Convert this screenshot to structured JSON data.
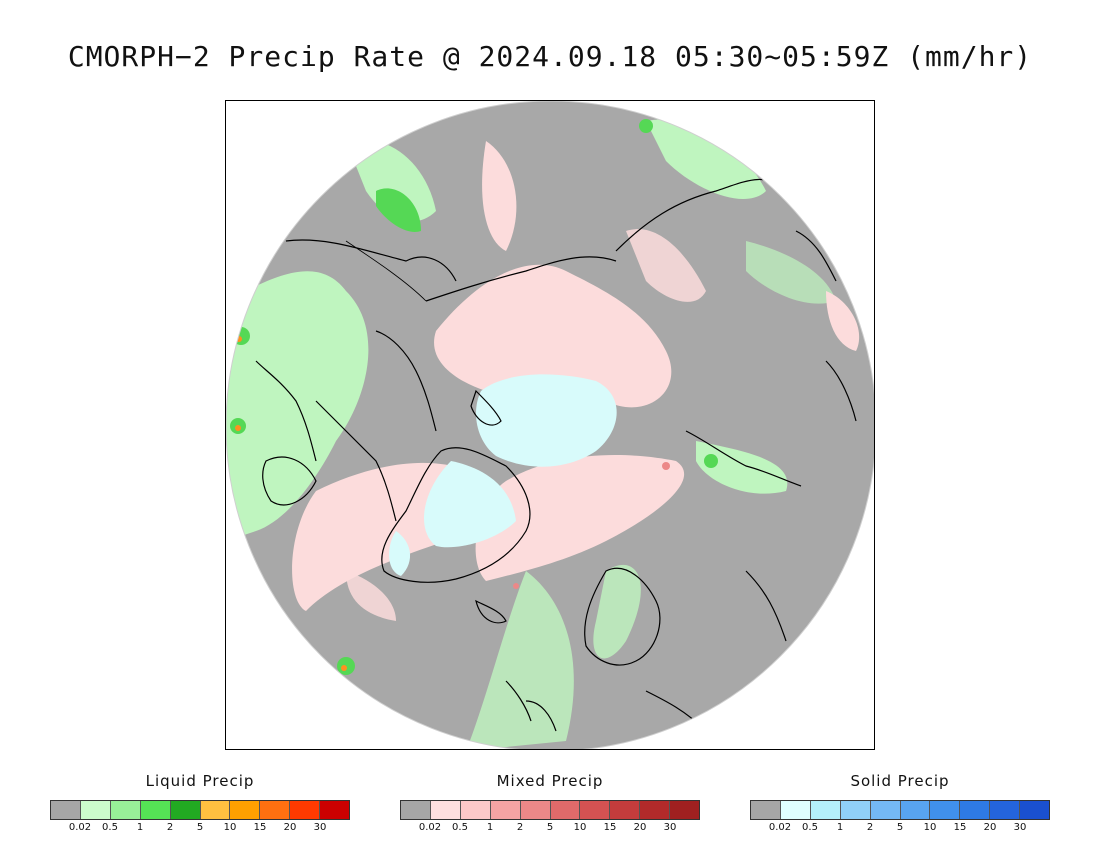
{
  "title": "CMORPH−2 Precip Rate @ 2024.09.18 05:30~05:59Z (mm/hr)",
  "map": {
    "projection": "north-polar-stereographic",
    "background_color": "#a8a8a8",
    "features": [
      "coastlines",
      "precip-shading"
    ]
  },
  "legends": [
    {
      "name": "liquid",
      "title": "Liquid Precip",
      "colors": [
        "#a6a6a6",
        "#ccfccc",
        "#98f098",
        "#55e255",
        "#22aa22",
        "#ffc040",
        "#ffa000",
        "#ff7010",
        "#ff3a00",
        "#cc0000"
      ],
      "ticks": [
        "0.02",
        "0.5",
        "1",
        "2",
        "5",
        "10",
        "15",
        "20",
        "30"
      ]
    },
    {
      "name": "mixed",
      "title": "Mixed Precip",
      "colors": [
        "#a6a6a6",
        "#fee0e0",
        "#fcc8c8",
        "#f4a4a4",
        "#ec8888",
        "#e06a6a",
        "#d45252",
        "#c43c3c",
        "#b22a2a",
        "#a02020"
      ],
      "ticks": [
        "0.02",
        "0.5",
        "1",
        "2",
        "5",
        "10",
        "15",
        "20",
        "30"
      ]
    },
    {
      "name": "solid",
      "title": "Solid Precip",
      "colors": [
        "#a6a6a6",
        "#e0ffff",
        "#b4f0fa",
        "#90d0f8",
        "#74b8f4",
        "#58a4f0",
        "#4090ec",
        "#2e7ae4",
        "#2464dc",
        "#1a50d0"
      ],
      "ticks": [
        "0.02",
        "0.5",
        "1",
        "2",
        "5",
        "10",
        "15",
        "20",
        "30"
      ]
    }
  ]
}
